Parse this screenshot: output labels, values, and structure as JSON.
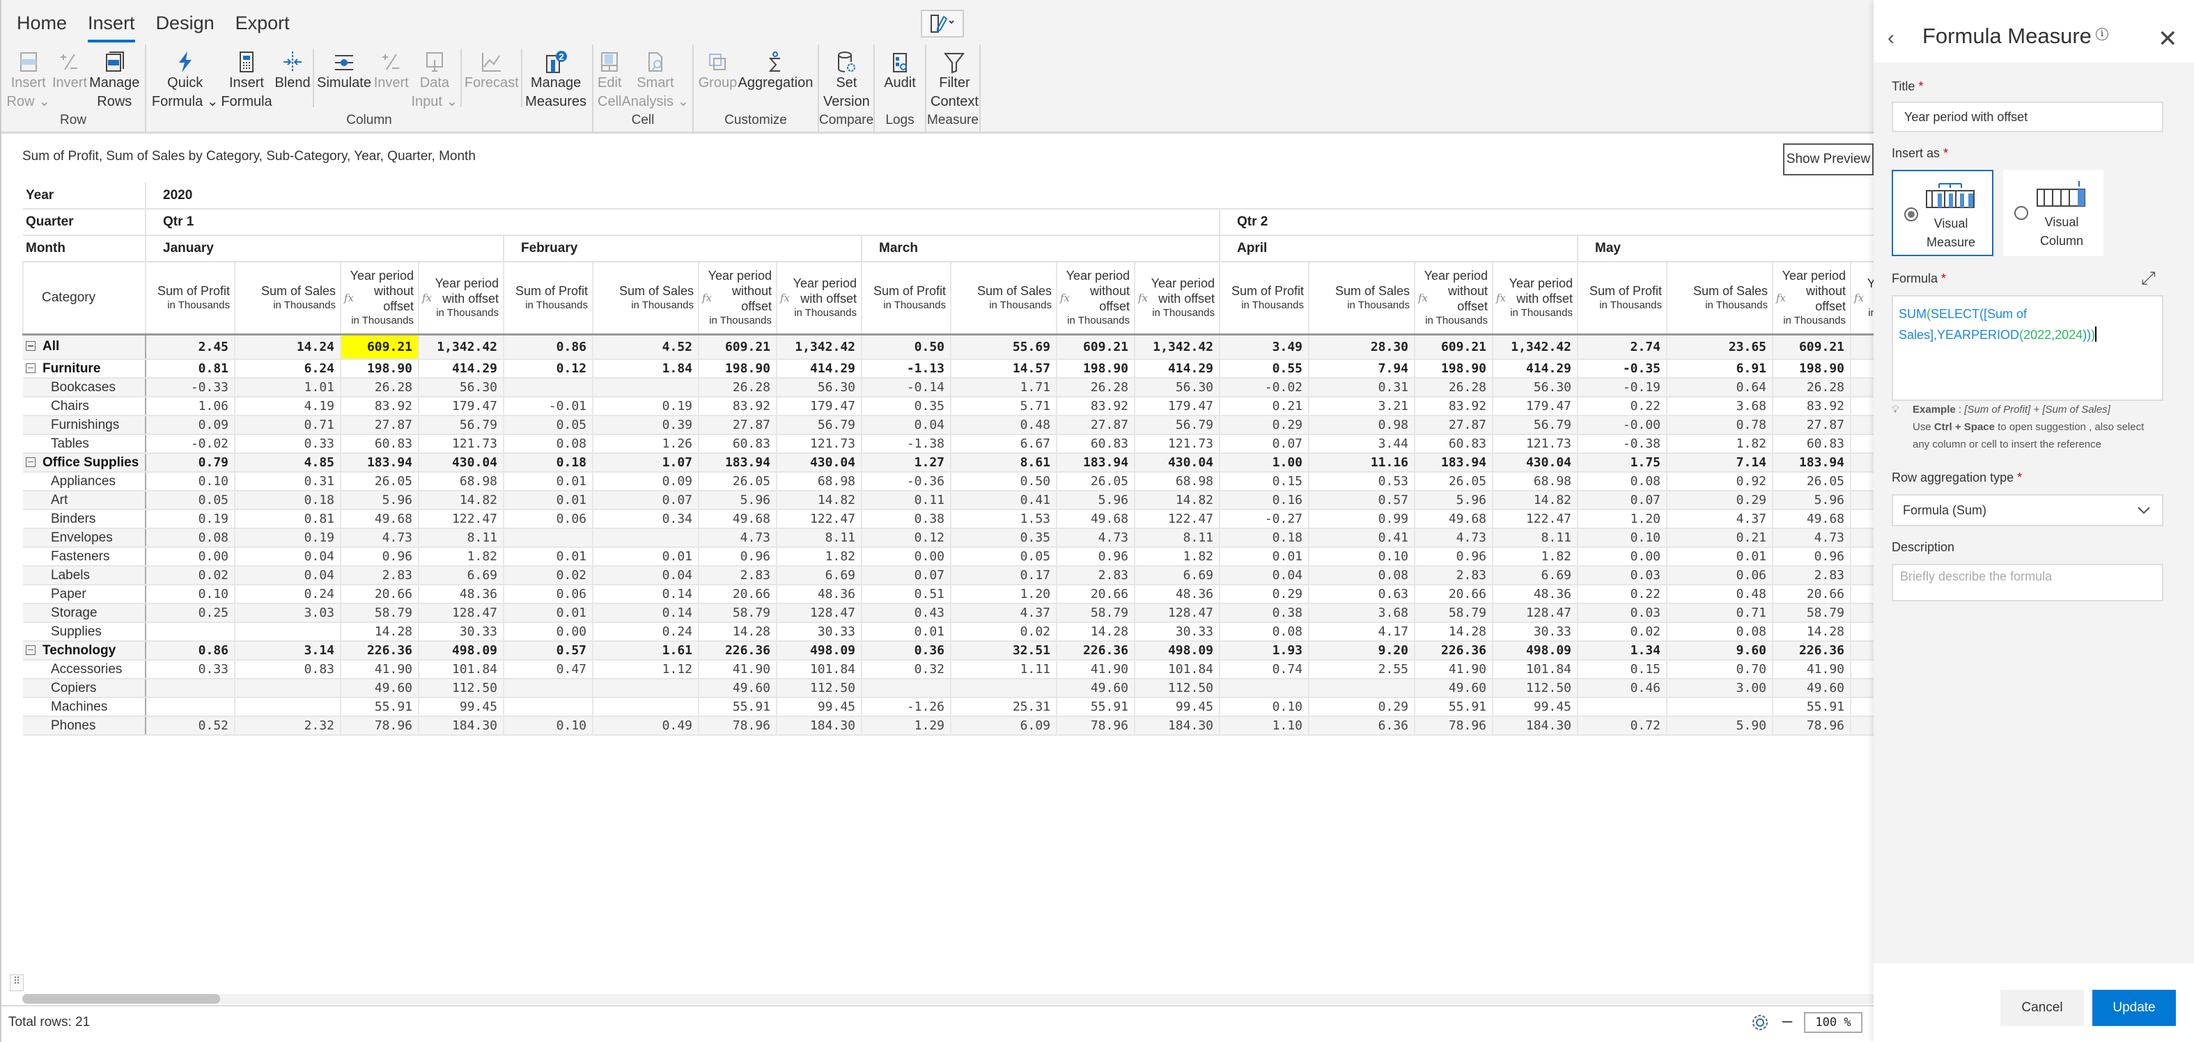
{
  "tabs": [
    {
      "label": "Home"
    },
    {
      "label": "Insert",
      "active": true
    },
    {
      "label": "Design"
    },
    {
      "label": "Export"
    }
  ],
  "ribbon": [
    {
      "label": "Row",
      "items": [
        {
          "lines": [
            "Insert",
            "Row ⌄"
          ],
          "icon": "insert-row-icon",
          "disabled": true
        },
        {
          "lines": [
            "Invert",
            ""
          ],
          "icon": "invert-icon",
          "disabled": true
        },
        {
          "lines": [
            "Manage",
            "Rows"
          ],
          "icon": "manage-rows-icon"
        }
      ]
    },
    {
      "label": "Column",
      "items": [
        {
          "lines": [
            "Quick",
            "Formula ⌄"
          ],
          "icon": "lightning-icon"
        },
        {
          "lines": [
            "Insert",
            "Formula"
          ],
          "icon": "calculator-icon"
        },
        {
          "lines": [
            "Blend",
            ""
          ],
          "icon": "blend-icon"
        },
        {
          "lines": [
            "Simulate",
            ""
          ],
          "icon": "slider-icon"
        },
        {
          "lines": [
            "Invert",
            ""
          ],
          "icon": "invert-icon",
          "disabled": true
        },
        {
          "lines": [
            "Data",
            "Input ⌄"
          ],
          "icon": "data-input-icon",
          "disabled": true
        },
        {
          "lines": [
            "Forecast",
            ""
          ],
          "icon": "forecast-icon",
          "disabled": true
        },
        {
          "lines": [
            "Manage",
            "Measures"
          ],
          "icon": "manage-measures-icon",
          "badge": "2"
        }
      ]
    },
    {
      "label": "Cell",
      "items": [
        {
          "lines": [
            "Edit",
            "Cell"
          ],
          "icon": "edit-cell-icon",
          "disabled": true
        },
        {
          "lines": [
            "Smart",
            "Analysis ⌄"
          ],
          "icon": "smart-analysis-icon",
          "disabled": true
        }
      ]
    },
    {
      "label": "Customize",
      "items": [
        {
          "lines": [
            "Group",
            ""
          ],
          "icon": "group-icon",
          "disabled": true
        },
        {
          "lines": [
            "Aggregation",
            ""
          ],
          "icon": "sigma-icon"
        }
      ]
    },
    {
      "label": "Compare",
      "items": [
        {
          "lines": [
            "Set",
            "Version"
          ],
          "icon": "version-icon"
        }
      ]
    },
    {
      "label": "Logs",
      "items": [
        {
          "lines": [
            "Audit",
            ""
          ],
          "icon": "audit-icon"
        }
      ]
    },
    {
      "label": "Measure",
      "items": [
        {
          "lines": [
            "Filter",
            "Context"
          ],
          "icon": "filter-icon"
        }
      ]
    }
  ],
  "subtitle": "Sum of Profit, Sum of Sales by Category, Sub-Category, Year, Quarter, Month",
  "show_preview": "Show Preview",
  "grid": {
    "row_labels": {
      "year": "Year",
      "quarter": "Quarter",
      "month": "Month",
      "category": "Category"
    },
    "year": "2020",
    "quarters": [
      {
        "label": "Qtr 1",
        "months": 3
      },
      {
        "label": "Qtr 2",
        "months": 2
      }
    ],
    "months": [
      {
        "label": "January",
        "cols": 4
      },
      {
        "label": "February",
        "cols": 4
      },
      {
        "label": "March",
        "cols": 4
      },
      {
        "label": "April",
        "cols": 4
      },
      {
        "label": "May",
        "cols": 4
      }
    ],
    "measures": [
      {
        "label": "Sum of Profit",
        "unit": "in Thousands",
        "formula": false
      },
      {
        "label": "Sum of Sales",
        "unit": "in Thousands",
        "formula": true
      },
      {
        "label": "Year period without offset",
        "unit": "in Thousands",
        "formula": true
      },
      {
        "label": "Year period with offset",
        "unit": "in Thousands",
        "formula": false
      }
    ],
    "fx_label": "fx",
    "highlight_color": "#ffff00",
    "rows": [
      {
        "label": "All",
        "level": 0,
        "values": [
          "2.45",
          "14.24",
          "609.21",
          "1,342.42",
          "0.86",
          "4.52",
          "609.21",
          "1,342.42",
          "0.50",
          "55.69",
          "609.21",
          "1,342.42",
          "3.49",
          "28.30",
          "609.21",
          "1,342.42",
          "2.74",
          "23.65",
          "609.21",
          ""
        ],
        "highlight": [
          2
        ]
      },
      {
        "label": "Furniture",
        "level": 1,
        "values": [
          "0.81",
          "6.24",
          "198.90",
          "414.29",
          "0.12",
          "1.84",
          "198.90",
          "414.29",
          "-1.13",
          "14.57",
          "198.90",
          "414.29",
          "0.55",
          "7.94",
          "198.90",
          "414.29",
          "-0.35",
          "6.91",
          "198.90",
          ""
        ]
      },
      {
        "label": "Bookcases",
        "level": 2,
        "values": [
          "-0.33",
          "1.01",
          "26.28",
          "56.30",
          "",
          "",
          "26.28",
          "56.30",
          "-0.14",
          "1.71",
          "26.28",
          "56.30",
          "-0.02",
          "0.31",
          "26.28",
          "56.30",
          "-0.19",
          "0.64",
          "26.28",
          ""
        ]
      },
      {
        "label": "Chairs",
        "level": 2,
        "values": [
          "1.06",
          "4.19",
          "83.92",
          "179.47",
          "-0.01",
          "0.19",
          "83.92",
          "179.47",
          "0.35",
          "5.71",
          "83.92",
          "179.47",
          "0.21",
          "3.21",
          "83.92",
          "179.47",
          "0.22",
          "3.68",
          "83.92",
          ""
        ]
      },
      {
        "label": "Furnishings",
        "level": 2,
        "values": [
          "0.09",
          "0.71",
          "27.87",
          "56.79",
          "0.05",
          "0.39",
          "27.87",
          "56.79",
          "0.04",
          "0.48",
          "27.87",
          "56.79",
          "0.29",
          "0.98",
          "27.87",
          "56.79",
          "-0.00",
          "0.78",
          "27.87",
          ""
        ]
      },
      {
        "label": "Tables",
        "level": 2,
        "values": [
          "-0.02",
          "0.33",
          "60.83",
          "121.73",
          "0.08",
          "1.26",
          "60.83",
          "121.73",
          "-1.38",
          "6.67",
          "60.83",
          "121.73",
          "0.07",
          "3.44",
          "60.83",
          "121.73",
          "-0.38",
          "1.82",
          "60.83",
          ""
        ]
      },
      {
        "label": "Office Supplies",
        "level": 1,
        "values": [
          "0.79",
          "4.85",
          "183.94",
          "430.04",
          "0.18",
          "1.07",
          "183.94",
          "430.04",
          "1.27",
          "8.61",
          "183.94",
          "430.04",
          "1.00",
          "11.16",
          "183.94",
          "430.04",
          "1.75",
          "7.14",
          "183.94",
          ""
        ]
      },
      {
        "label": "Appliances",
        "level": 2,
        "values": [
          "0.10",
          "0.31",
          "26.05",
          "68.98",
          "0.01",
          "0.09",
          "26.05",
          "68.98",
          "-0.36",
          "0.50",
          "26.05",
          "68.98",
          "0.15",
          "0.53",
          "26.05",
          "68.98",
          "0.08",
          "0.92",
          "26.05",
          ""
        ]
      },
      {
        "label": "Art",
        "level": 2,
        "values": [
          "0.05",
          "0.18",
          "5.96",
          "14.82",
          "0.01",
          "0.07",
          "5.96",
          "14.82",
          "0.11",
          "0.41",
          "5.96",
          "14.82",
          "0.16",
          "0.57",
          "5.96",
          "14.82",
          "0.07",
          "0.29",
          "5.96",
          ""
        ]
      },
      {
        "label": "Binders",
        "level": 2,
        "values": [
          "0.19",
          "0.81",
          "49.68",
          "122.47",
          "0.06",
          "0.34",
          "49.68",
          "122.47",
          "0.38",
          "1.53",
          "49.68",
          "122.47",
          "-0.27",
          "0.99",
          "49.68",
          "122.47",
          "1.20",
          "4.37",
          "49.68",
          ""
        ]
      },
      {
        "label": "Envelopes",
        "level": 2,
        "values": [
          "0.08",
          "0.19",
          "4.73",
          "8.11",
          "",
          "",
          "4.73",
          "8.11",
          "0.12",
          "0.35",
          "4.73",
          "8.11",
          "0.18",
          "0.41",
          "4.73",
          "8.11",
          "0.10",
          "0.21",
          "4.73",
          ""
        ]
      },
      {
        "label": "Fasteners",
        "level": 2,
        "values": [
          "0.00",
          "0.04",
          "0.96",
          "1.82",
          "0.01",
          "0.01",
          "0.96",
          "1.82",
          "0.00",
          "0.05",
          "0.96",
          "1.82",
          "0.01",
          "0.10",
          "0.96",
          "1.82",
          "0.00",
          "0.01",
          "0.96",
          ""
        ]
      },
      {
        "label": "Labels",
        "level": 2,
        "values": [
          "0.02",
          "0.04",
          "2.83",
          "6.69",
          "0.02",
          "0.04",
          "2.83",
          "6.69",
          "0.07",
          "0.17",
          "2.83",
          "6.69",
          "0.04",
          "0.08",
          "2.83",
          "6.69",
          "0.03",
          "0.06",
          "2.83",
          ""
        ]
      },
      {
        "label": "Paper",
        "level": 2,
        "values": [
          "0.10",
          "0.24",
          "20.66",
          "48.36",
          "0.06",
          "0.14",
          "20.66",
          "48.36",
          "0.51",
          "1.20",
          "20.66",
          "48.36",
          "0.29",
          "0.63",
          "20.66",
          "48.36",
          "0.22",
          "0.48",
          "20.66",
          ""
        ]
      },
      {
        "label": "Storage",
        "level": 2,
        "values": [
          "0.25",
          "3.03",
          "58.79",
          "128.47",
          "0.01",
          "0.14",
          "58.79",
          "128.47",
          "0.43",
          "4.37",
          "58.79",
          "128.47",
          "0.38",
          "3.68",
          "58.79",
          "128.47",
          "0.03",
          "0.71",
          "58.79",
          ""
        ]
      },
      {
        "label": "Supplies",
        "level": 2,
        "values": [
          "",
          "",
          "14.28",
          "30.33",
          "0.00",
          "0.24",
          "14.28",
          "30.33",
          "0.01",
          "0.02",
          "14.28",
          "30.33",
          "0.08",
          "4.17",
          "14.28",
          "30.33",
          "0.02",
          "0.08",
          "14.28",
          ""
        ]
      },
      {
        "label": "Technology",
        "level": 1,
        "values": [
          "0.86",
          "3.14",
          "226.36",
          "498.09",
          "0.57",
          "1.61",
          "226.36",
          "498.09",
          "0.36",
          "32.51",
          "226.36",
          "498.09",
          "1.93",
          "9.20",
          "226.36",
          "498.09",
          "1.34",
          "9.60",
          "226.36",
          ""
        ]
      },
      {
        "label": "Accessories",
        "level": 2,
        "values": [
          "0.33",
          "0.83",
          "41.90",
          "101.84",
          "0.47",
          "1.12",
          "41.90",
          "101.84",
          "0.32",
          "1.11",
          "41.90",
          "101.84",
          "0.74",
          "2.55",
          "41.90",
          "101.84",
          "0.15",
          "0.70",
          "41.90",
          ""
        ]
      },
      {
        "label": "Copiers",
        "level": 2,
        "values": [
          "",
          "",
          "49.60",
          "112.50",
          "",
          "",
          "49.60",
          "112.50",
          "",
          "",
          "49.60",
          "112.50",
          "",
          "",
          "49.60",
          "112.50",
          "0.46",
          "3.00",
          "49.60",
          ""
        ]
      },
      {
        "label": "Machines",
        "level": 2,
        "values": [
          "",
          "",
          "55.91",
          "99.45",
          "",
          "",
          "55.91",
          "99.45",
          "-1.26",
          "25.31",
          "55.91",
          "99.45",
          "0.10",
          "0.29",
          "55.91",
          "99.45",
          "",
          "",
          "55.91",
          ""
        ]
      },
      {
        "label": "Phones",
        "level": 2,
        "values": [
          "0.52",
          "2.32",
          "78.96",
          "184.30",
          "0.10",
          "0.49",
          "78.96",
          "184.30",
          "1.29",
          "6.09",
          "78.96",
          "184.30",
          "1.10",
          "6.36",
          "78.96",
          "184.30",
          "0.72",
          "5.90",
          "78.96",
          ""
        ]
      }
    ]
  },
  "footer": {
    "total_rows": "Total rows: 21",
    "zoom": "100 %",
    "zoom_out": "−",
    "zoom_in": "+"
  },
  "panel": {
    "title": "Formula Measure",
    "back": "‹",
    "close": "✕",
    "info": "i",
    "title_label": "Title",
    "required": "*",
    "title_value": "Year period with offset",
    "insert_as_label": "Insert as",
    "options": [
      {
        "label1": "Visual",
        "label2": "Measure",
        "selected": true
      },
      {
        "label1": "Visual",
        "label2": "Column",
        "selected": false
      }
    ],
    "formula_label": "Formula",
    "expand": "⤢",
    "formula_tokens": [
      {
        "t": "SUM",
        "c": "#1a86e0"
      },
      {
        "t": "(",
        "c": "#2eb85c"
      },
      {
        "t": "SELECT([Sum of ",
        "c": "#1a86e0"
      },
      {
        "t": "Sales],YEARPERIOD",
        "c": "#1a86e0"
      },
      {
        "t": "(",
        "c": "#2eb85c"
      },
      {
        "t": "2022",
        "c": "#2eb85c"
      },
      {
        "t": ",",
        "c": "#1a86e0"
      },
      {
        "t": "2024",
        "c": "#2eb85c"
      },
      {
        "t": "))",
        "c": "#1a86e0"
      },
      {
        "t": ")",
        "c": "#2eb85c"
      }
    ],
    "example_bold": "Example",
    "example_sep": " : ",
    "example_text": "[Sum of Profit] + [Sum of Sales]",
    "hint_1": "Use ",
    "hint_bold": "Ctrl + Space",
    "hint_2": " to open suggestion , also select",
    "hint_3": "any column or cell to insert the reference",
    "agg_label": "Row aggregation type",
    "agg_value": "Formula (Sum)",
    "desc_label": "Description",
    "desc_placeholder": "Briefly describe the formula",
    "cancel": "Cancel",
    "update": "Update",
    "accent": "#0078d4"
  }
}
